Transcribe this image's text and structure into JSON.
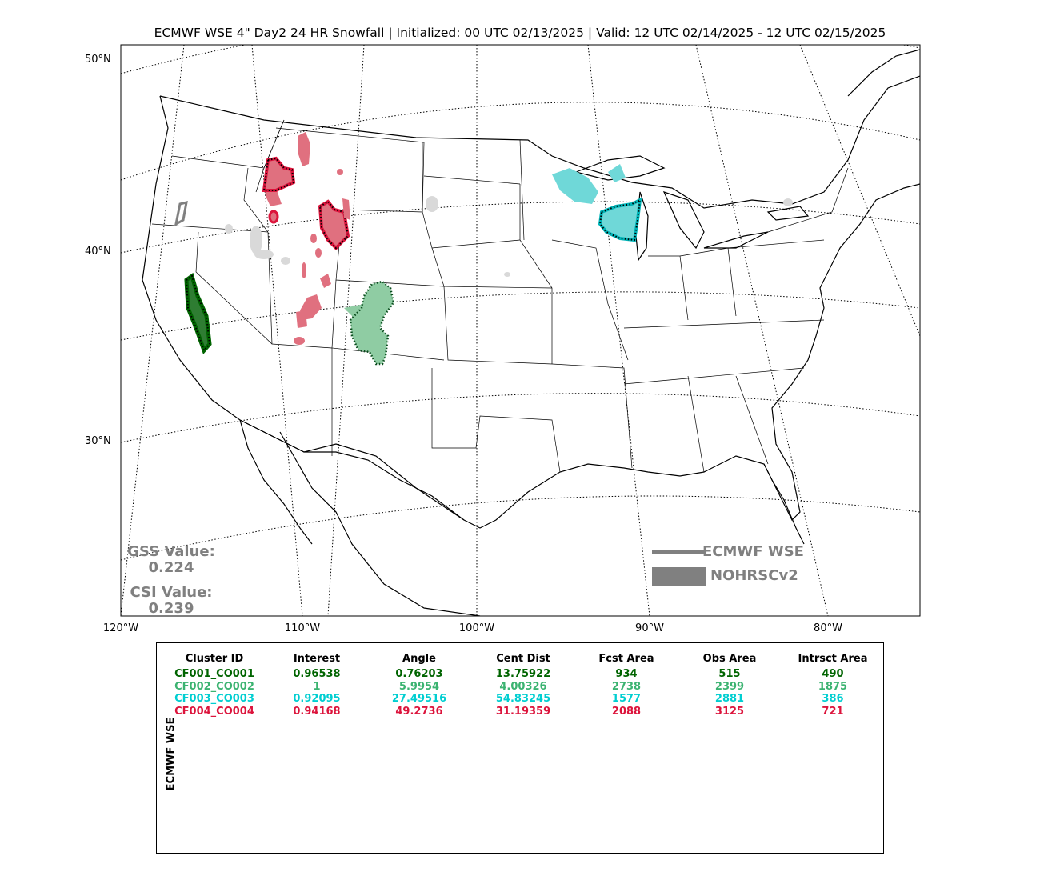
{
  "title": "ECMWF WSE 4\" Day2 24 HR Snowfall | Initialized: 00 UTC 02/13/2025 | Valid: 12 UTC 02/14/2025 - 12 UTC 02/15/2025",
  "lat_labels": [
    "50°N",
    "40°N",
    "30°N"
  ],
  "lon_labels": [
    "120°W",
    "110°W",
    "100°W",
    "90°W",
    "80°W"
  ],
  "stats": {
    "gss_label": "GSS Value:",
    "gss_value": "0.224",
    "csi_label": "CSI Value:",
    "csi_value": "0.239"
  },
  "legend": {
    "forecast_label": "ECMWF WSE",
    "observed_label": "NOHRSCv2",
    "color": "#808080"
  },
  "table": {
    "side_label": "ECMWF WSE",
    "headers": [
      "Cluster ID",
      "Interest",
      "Angle",
      "Cent Dist",
      "Fcst Area",
      "Obs Area",
      "Intrsct Area"
    ],
    "rows": [
      {
        "color": "#006400",
        "cells": [
          "CF001_CO001",
          "0.96538",
          "0.76203",
          "13.75922",
          "934",
          "515",
          "490"
        ]
      },
      {
        "color": "#3cb371",
        "cells": [
          "CF002_CO002",
          "1",
          "5.9954",
          "4.00326",
          "2738",
          "2399",
          "1875"
        ]
      },
      {
        "color": "#00ced1",
        "cells": [
          "CF003_CO003",
          "0.92095",
          "27.49516",
          "54.83245",
          "1577",
          "2881",
          "386"
        ]
      },
      {
        "color": "#dc143c",
        "cells": [
          "CF004_CO004",
          "0.94168",
          "49.2736",
          "31.19359",
          "2088",
          "3125",
          "721"
        ]
      }
    ]
  },
  "clusters": [
    {
      "id": "CF001_CO001",
      "color": "#006400",
      "fill": "#2e7d32"
    },
    {
      "id": "CF002_CO002",
      "color": "#0b4d1e",
      "fill": "#8fcca3"
    },
    {
      "id": "CF003_CO003",
      "color": "#007b7d",
      "fill": "#6fd8d8"
    },
    {
      "id": "CF004_CO004",
      "color": "#b0102e",
      "fill": "#e0707f"
    }
  ],
  "unmatched_color": "#d9d9d9"
}
